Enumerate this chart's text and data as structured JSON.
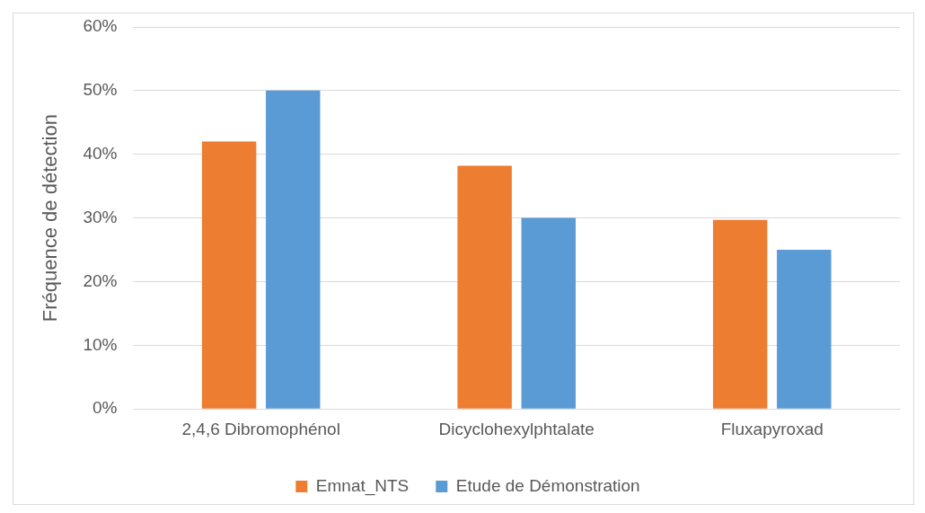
{
  "chart_data": {
    "type": "bar",
    "ylabel": "Fréquence de détection",
    "categories": [
      "2,4,6 Dibromophénol",
      "Dicyclohexylphtalate",
      "Fluxapyroxad"
    ],
    "series": [
      {
        "name": "Emnat_NTS",
        "color": "#ed7d31",
        "values": [
          42,
          38.2,
          29.7
        ]
      },
      {
        "name": "Etude de Démonstration",
        "color": "#5b9bd5",
        "values": [
          50,
          30,
          25
        ]
      }
    ],
    "ylim": [
      0,
      60
    ],
    "yticks": [
      {
        "value": 0,
        "label": "0%"
      },
      {
        "value": 10,
        "label": "10%"
      },
      {
        "value": 20,
        "label": "20%"
      },
      {
        "value": 30,
        "label": "30%"
      },
      {
        "value": 40,
        "label": "40%"
      },
      {
        "value": 50,
        "label": "50%"
      },
      {
        "value": 60,
        "label": "60%"
      }
    ],
    "grid": "y",
    "legend": "bottom"
  }
}
